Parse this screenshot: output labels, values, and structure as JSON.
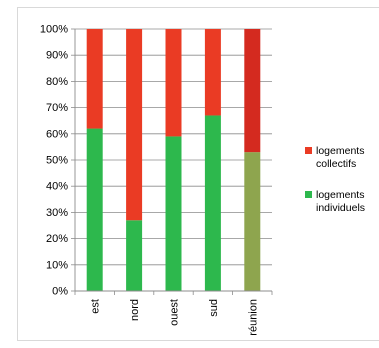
{
  "chart_data": {
    "type": "bar",
    "stacked": true,
    "percent_stacked": true,
    "categories": [
      "est",
      "nord",
      "ouest",
      "sud",
      "réunion"
    ],
    "series": [
      {
        "name": "logements individuels",
        "values": [
          62,
          27,
          59,
          67,
          53
        ],
        "color": "#2db84d",
        "highlight_color": "#8ea54e"
      },
      {
        "name": "logements collectifs",
        "values": [
          38,
          73,
          41,
          33,
          47
        ],
        "color": "#ea3b24",
        "highlight_color": "#d42a1f"
      }
    ],
    "highlight_category": "réunion",
    "y_ticks": [
      "0%",
      "10%",
      "20%",
      "30%",
      "40%",
      "50%",
      "60%",
      "70%",
      "80%",
      "90%",
      "100%"
    ],
    "ylim": [
      0,
      100
    ],
    "grid": true,
    "legend": {
      "placement": "right",
      "entries": [
        {
          "lines": [
            "logements",
            "collectifs"
          ],
          "color": "#ea3b24"
        },
        {
          "lines": [
            "logements",
            "individuels"
          ],
          "color": "#2db84d"
        }
      ]
    },
    "title": "",
    "xlabel": "",
    "ylabel": ""
  }
}
